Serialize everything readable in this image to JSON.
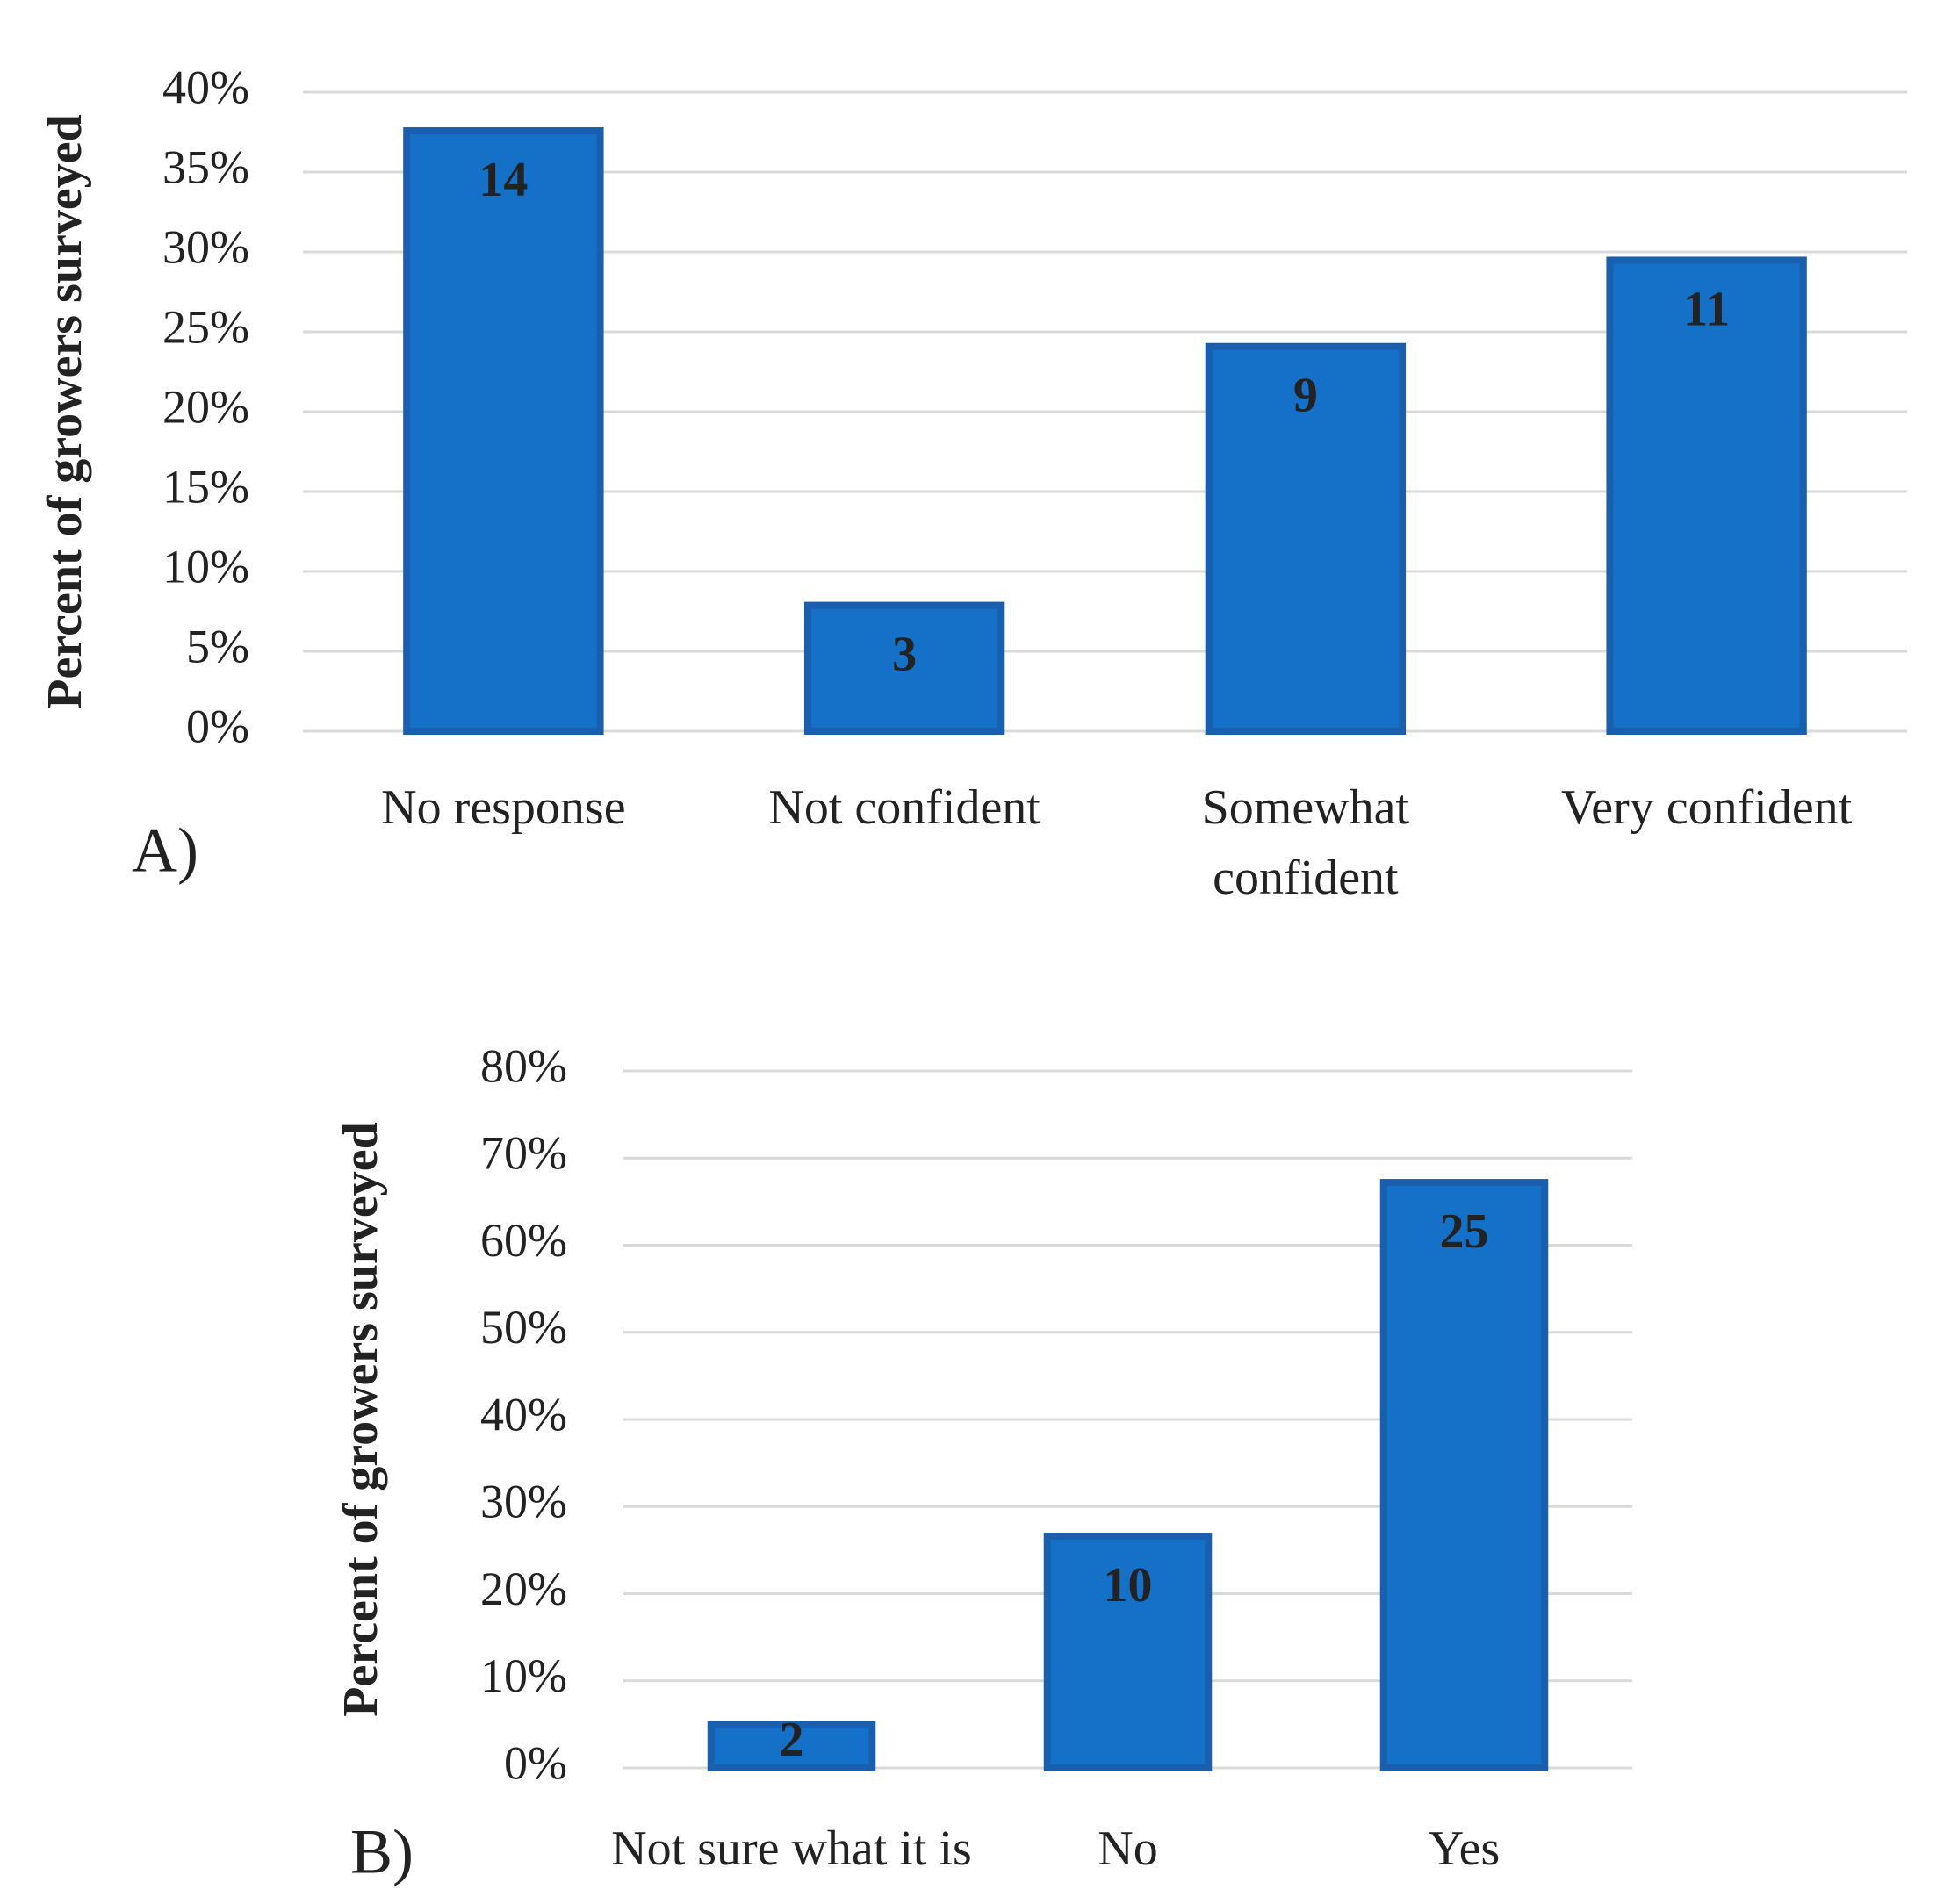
{
  "chart_data": [
    {
      "type": "bar",
      "panel_label": "A)",
      "y_label": "Percent of growers surveyed",
      "categories": [
        "No response",
        "Not confident",
        "Somewhat confident",
        "Very confident"
      ],
      "values": [
        37.8,
        8.1,
        24.3,
        29.7
      ],
      "counts": [
        14,
        3,
        9,
        11
      ],
      "color": "#1570c8",
      "ylim": [
        0,
        40
      ],
      "yticks": [
        {
          "value": 0,
          "label": "0%"
        },
        {
          "value": 5,
          "label": "5%"
        },
        {
          "value": 10,
          "label": "10%"
        },
        {
          "value": 15,
          "label": "15%"
        },
        {
          "value": 20,
          "label": "20%"
        },
        {
          "value": 25,
          "label": "25%"
        },
        {
          "value": 30,
          "label": "30%"
        },
        {
          "value": 35,
          "label": "35%"
        },
        {
          "value": 40,
          "label": "40%"
        }
      ],
      "grid": true
    },
    {
      "type": "bar",
      "panel_label": "B)",
      "y_label": "Percent of growers surveyed",
      "categories": [
        "Not sure what it is",
        "No",
        "Yes"
      ],
      "values": [
        5.4,
        27.0,
        67.6
      ],
      "counts": [
        2,
        10,
        25
      ],
      "color": "#1570c8",
      "ylim": [
        0,
        80
      ],
      "yticks": [
        {
          "value": 0,
          "label": "0%"
        },
        {
          "value": 10,
          "label": "10%"
        },
        {
          "value": 20,
          "label": "20%"
        },
        {
          "value": 30,
          "label": "30%"
        },
        {
          "value": 40,
          "label": "40%"
        },
        {
          "value": 50,
          "label": "50%"
        },
        {
          "value": 60,
          "label": "60%"
        },
        {
          "value": 70,
          "label": "70%"
        },
        {
          "value": 80,
          "label": "80%"
        }
      ],
      "grid": true
    }
  ]
}
